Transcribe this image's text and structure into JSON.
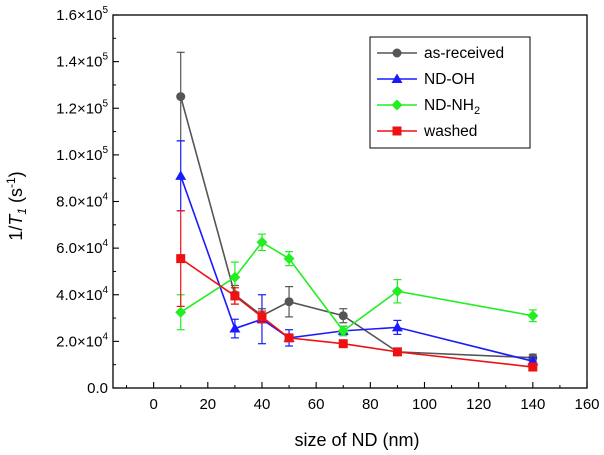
{
  "chart_data": {
    "type": "line",
    "title": "",
    "xlabel": "size of ND (nm)",
    "ylabel": {
      "main": "1/",
      "italic": "T",
      "sub": "1",
      "unit_open": " (s",
      "unit_sup": "-1",
      "unit_close": ")"
    },
    "xlim": [
      -15,
      160
    ],
    "ylim": [
      0,
      160000
    ],
    "x_ticks": [
      0,
      20,
      40,
      60,
      80,
      100,
      120,
      140,
      160
    ],
    "x_tick_labels": [
      "0",
      "20",
      "40",
      "60",
      "80",
      "100",
      "120",
      "140",
      "160"
    ],
    "y_ticks": [
      0,
      20000,
      40000,
      60000,
      80000,
      100000,
      120000,
      140000,
      160000
    ],
    "y_tick_labels": [
      {
        "mant": "0.0",
        "exp": ""
      },
      {
        "mant": "2.0×10",
        "exp": "4"
      },
      {
        "mant": "4.0×10",
        "exp": "4"
      },
      {
        "mant": "6.0×10",
        "exp": "4"
      },
      {
        "mant": "8.0×10",
        "exp": "4"
      },
      {
        "mant": "1.0×10",
        "exp": "5"
      },
      {
        "mant": "1.2×10",
        "exp": "5"
      },
      {
        "mant": "1.4×10",
        "exp": "5"
      },
      {
        "mant": "1.6×10",
        "exp": "5"
      }
    ],
    "grid": false,
    "legend_position": "top-right",
    "series": [
      {
        "name": "as-received",
        "color": "#555555",
        "marker": "circle",
        "x": [
          10,
          30,
          40,
          50,
          70,
          90,
          140
        ],
        "y": [
          125000,
          40000,
          31000,
          37000,
          31000,
          15500,
          13000
        ],
        "err": [
          19000,
          4000,
          3000,
          6500,
          3000,
          1000,
          1500
        ]
      },
      {
        "name": "ND-OH",
        "color": "#1a1aff",
        "marker": "triangle",
        "x": [
          10,
          30,
          40,
          50,
          70,
          90,
          140
        ],
        "y": [
          91000,
          25500,
          29500,
          21500,
          24500,
          26000,
          11500
        ],
        "err": [
          15000,
          4000,
          10500,
          3500,
          2000,
          3000,
          1500
        ]
      },
      {
        "name": "ND-NH2",
        "legend_main": "ND-NH",
        "legend_sub": "2",
        "color": "#22ee22",
        "marker": "diamond",
        "x": [
          10,
          30,
          40,
          50,
          70,
          90,
          140
        ],
        "y": [
          32500,
          47500,
          62500,
          55500,
          24500,
          41500,
          31000
        ],
        "err": [
          7500,
          6500,
          3500,
          3000,
          2000,
          5000,
          2500
        ]
      },
      {
        "name": "washed",
        "color": "#ee1111",
        "marker": "square",
        "x": [
          10,
          30,
          40,
          50,
          70,
          90,
          140
        ],
        "y": [
          55500,
          39500,
          30500,
          21500,
          19000,
          15500,
          9000
        ],
        "err": [
          20500,
          3500,
          2500,
          1500,
          1000,
          1000,
          1000
        ]
      }
    ]
  }
}
